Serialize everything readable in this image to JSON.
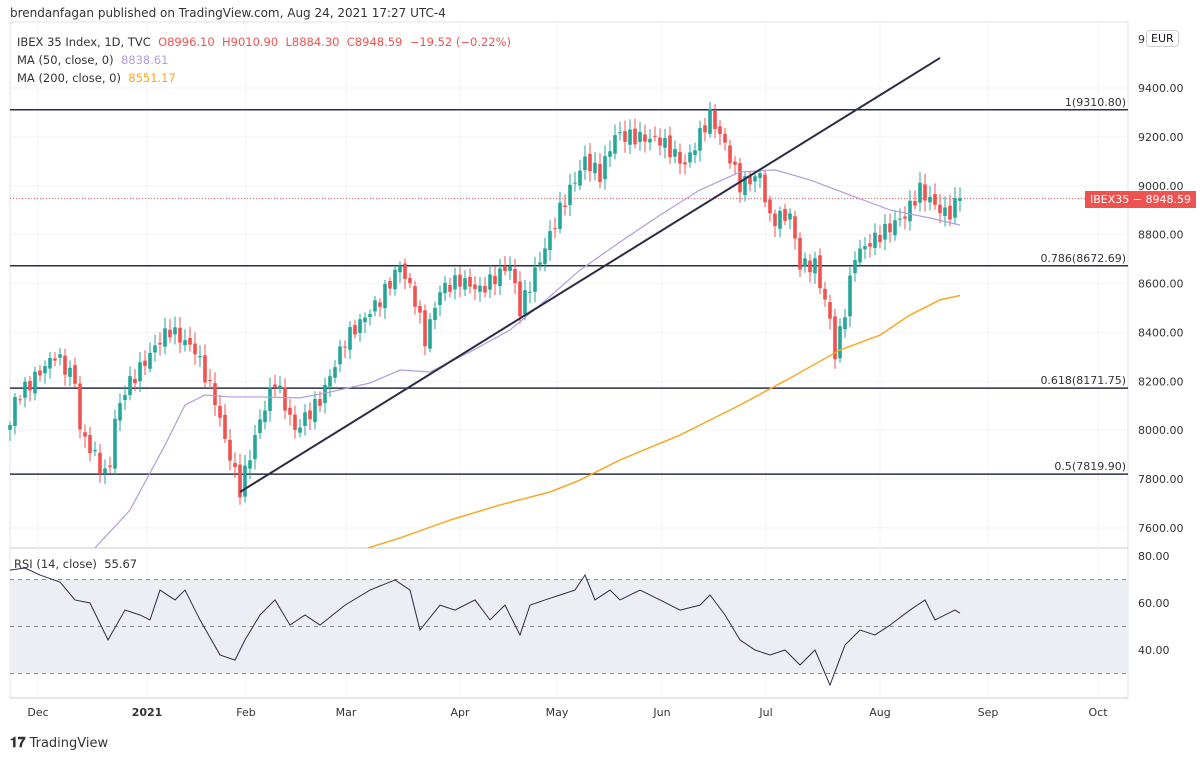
{
  "header": {
    "published": "brendanfagan published on TradingView.com, Aug 24, 2021 17:27 UTC-4"
  },
  "legend": {
    "symbol": "IBEX 35 Index, 1D, TVC",
    "open": "O8996.10",
    "high": "H9010.90",
    "low": "L8884.30",
    "close": "C8948.59",
    "change": "−19.52 (−0.22%)",
    "ma50_label": "MA (50, close, 0)",
    "ma50_value": "8838.61",
    "ma200_label": "MA (200, close, 0)",
    "ma200_value": "8551.17",
    "rsi_label": "RSI (14, close)",
    "rsi_value": "55.67"
  },
  "price_axis": {
    "currency": "EUR",
    "badge": "IBEX35 − 8948.59",
    "top_partial": "9"
  },
  "footer": {
    "brand": "TradingView"
  },
  "colors": {
    "up": "#26a69a",
    "down": "#ef5350",
    "ma50": "#b39ddb",
    "ma200": "#f9a825",
    "line": "#2a2e45"
  },
  "chart_data": {
    "type": "candlestick",
    "price_ylim": [
      7550,
      9560
    ],
    "price_ticks": [
      "9400.00",
      "9200.00",
      "9000.00",
      "8800.00",
      "8600.00",
      "8400.00",
      "8200.00",
      "8000.00",
      "7800.00",
      "7600.00"
    ],
    "rsi_ylim": [
      20,
      85
    ],
    "rsi_ticks": [
      "80.00",
      "60.00",
      "40.00"
    ],
    "rsi_band": [
      30,
      70
    ],
    "x_ticks": [
      {
        "label": "Dec",
        "idx": 5.6
      },
      {
        "label": "2021",
        "idx": 27.4
      },
      {
        "label": "Feb",
        "idx": 47.2
      },
      {
        "label": "Mar",
        "idx": 67.2
      },
      {
        "label": "Apr",
        "idx": 90
      },
      {
        "label": "May",
        "idx": 109.4
      },
      {
        "label": "Jun",
        "idx": 130.4
      },
      {
        "label": "Jul",
        "idx": 151.2
      },
      {
        "label": "Aug",
        "idx": 174
      },
      {
        "label": "Sep",
        "idx": 195.6
      },
      {
        "label": "Oct",
        "idx": 217.6
      }
    ],
    "close_path": [
      [
        0,
        8021
      ],
      [
        1,
        8123
      ],
      [
        9,
        8307
      ],
      [
        13,
        8205
      ],
      [
        14,
        8000
      ],
      [
        19.6,
        7796
      ],
      [
        21,
        8042
      ],
      [
        23,
        8164
      ],
      [
        30,
        8369
      ],
      [
        32,
        8410
      ],
      [
        37,
        8328
      ],
      [
        41,
        8123
      ],
      [
        43,
        7960
      ],
      [
        46,
        7755
      ],
      [
        50,
        8041
      ],
      [
        53,
        8205
      ],
      [
        57,
        8000
      ],
      [
        62,
        8123
      ],
      [
        67,
        8369
      ],
      [
        74,
        8533
      ],
      [
        78,
        8676
      ],
      [
        81,
        8533
      ],
      [
        83,
        8369
      ],
      [
        86,
        8573
      ],
      [
        90,
        8614
      ],
      [
        94,
        8573
      ],
      [
        100,
        8676
      ],
      [
        102,
        8492
      ],
      [
        106,
        8696
      ],
      [
        110,
        8901
      ],
      [
        115,
        9105
      ],
      [
        118,
        9044
      ],
      [
        121,
        9208
      ],
      [
        130,
        9187
      ],
      [
        135,
        9085
      ],
      [
        140,
        9289
      ],
      [
        143,
        9167
      ],
      [
        146,
        9003
      ],
      [
        150,
        9044
      ],
      [
        152,
        8860
      ],
      [
        156,
        8880
      ],
      [
        158,
        8676
      ],
      [
        161,
        8676
      ],
      [
        164,
        8451
      ],
      [
        165,
        8307
      ],
      [
        167,
        8492
      ],
      [
        169,
        8717
      ],
      [
        174,
        8799
      ],
      [
        179,
        8880
      ],
      [
        182,
        8983
      ],
      [
        186,
        8901
      ],
      [
        187.6,
        8880
      ],
      [
        190,
        8948.59
      ]
    ],
    "ma50": [
      [
        17,
        7518
      ],
      [
        24,
        7673
      ],
      [
        31,
        7939
      ],
      [
        35,
        8103
      ],
      [
        39,
        8144
      ],
      [
        44,
        8136
      ],
      [
        50,
        8136
      ],
      [
        58,
        8132
      ],
      [
        64,
        8156
      ],
      [
        72,
        8193
      ],
      [
        78,
        8246
      ],
      [
        84,
        8238
      ],
      [
        92,
        8320
      ],
      [
        100,
        8410
      ],
      [
        106,
        8512
      ],
      [
        114,
        8655
      ],
      [
        122,
        8770
      ],
      [
        130,
        8880
      ],
      [
        138,
        8983
      ],
      [
        146,
        9056
      ],
      [
        153,
        9065
      ],
      [
        160,
        9024
      ],
      [
        168,
        8962
      ],
      [
        176,
        8901
      ],
      [
        184,
        8868
      ],
      [
        190,
        8839
      ]
    ],
    "ma200": [
      [
        71.6,
        7518
      ],
      [
        78,
        7559
      ],
      [
        88,
        7632
      ],
      [
        98,
        7694
      ],
      [
        108,
        7747
      ],
      [
        114,
        7796
      ],
      [
        122,
        7878
      ],
      [
        134,
        7980
      ],
      [
        146,
        8103
      ],
      [
        156,
        8213
      ],
      [
        166,
        8328
      ],
      [
        174,
        8389
      ],
      [
        180,
        8471
      ],
      [
        186,
        8533
      ],
      [
        190,
        8551
      ]
    ],
    "rsi": [
      [
        0,
        74
      ],
      [
        3,
        74.9
      ],
      [
        6,
        71.9
      ],
      [
        10,
        68.9
      ],
      [
        13,
        61.3
      ],
      [
        16,
        60
      ],
      [
        19.6,
        44.3
      ],
      [
        23,
        57
      ],
      [
        26,
        54.9
      ],
      [
        28,
        52.8
      ],
      [
        30,
        65.5
      ],
      [
        33,
        61.3
      ],
      [
        35,
        65.5
      ],
      [
        38,
        52.8
      ],
      [
        42,
        37.9
      ],
      [
        45,
        35.7
      ],
      [
        47,
        44.3
      ],
      [
        50,
        54.9
      ],
      [
        53,
        61.3
      ],
      [
        56,
        50.6
      ],
      [
        59,
        54.9
      ],
      [
        62,
        50.6
      ],
      [
        67,
        59.1
      ],
      [
        72,
        65.5
      ],
      [
        77,
        69.8
      ],
      [
        80,
        65.5
      ],
      [
        82,
        48.5
      ],
      [
        86,
        59.1
      ],
      [
        89,
        57
      ],
      [
        93,
        61.3
      ],
      [
        96,
        52.8
      ],
      [
        99,
        59.1
      ],
      [
        102,
        46.4
      ],
      [
        104,
        59.1
      ],
      [
        107,
        61.3
      ],
      [
        110,
        63.4
      ],
      [
        113,
        65.5
      ],
      [
        115,
        71.9
      ],
      [
        117,
        61.3
      ],
      [
        120,
        65.5
      ],
      [
        122,
        61.3
      ],
      [
        126,
        65.5
      ],
      [
        130,
        61.3
      ],
      [
        134,
        57
      ],
      [
        138,
        59.1
      ],
      [
        140,
        63.4
      ],
      [
        143,
        54.9
      ],
      [
        146,
        44.3
      ],
      [
        149,
        40
      ],
      [
        152,
        37.9
      ],
      [
        155,
        40
      ],
      [
        158,
        33.6
      ],
      [
        161,
        40
      ],
      [
        164,
        25.1
      ],
      [
        167,
        42.1
      ],
      [
        170,
        48.5
      ],
      [
        173,
        46.4
      ],
      [
        176,
        50.6
      ],
      [
        180,
        57
      ],
      [
        183,
        61.3
      ],
      [
        185,
        52.8
      ],
      [
        187,
        54.9
      ],
      [
        189,
        57
      ],
      [
        190,
        55.67
      ]
    ],
    "trendline": [
      [
        46,
        7747
      ],
      [
        186,
        9523
      ]
    ],
    "fib_levels": [
      {
        "label": "1(9310.80)",
        "value": 9310.8
      },
      {
        "label": "0.786(8672.69)",
        "value": 8672.69
      },
      {
        "label": "0.618(8171.75)",
        "value": 8171.75
      },
      {
        "label": "0.5(7819.90)",
        "value": 7819.9
      }
    ]
  }
}
